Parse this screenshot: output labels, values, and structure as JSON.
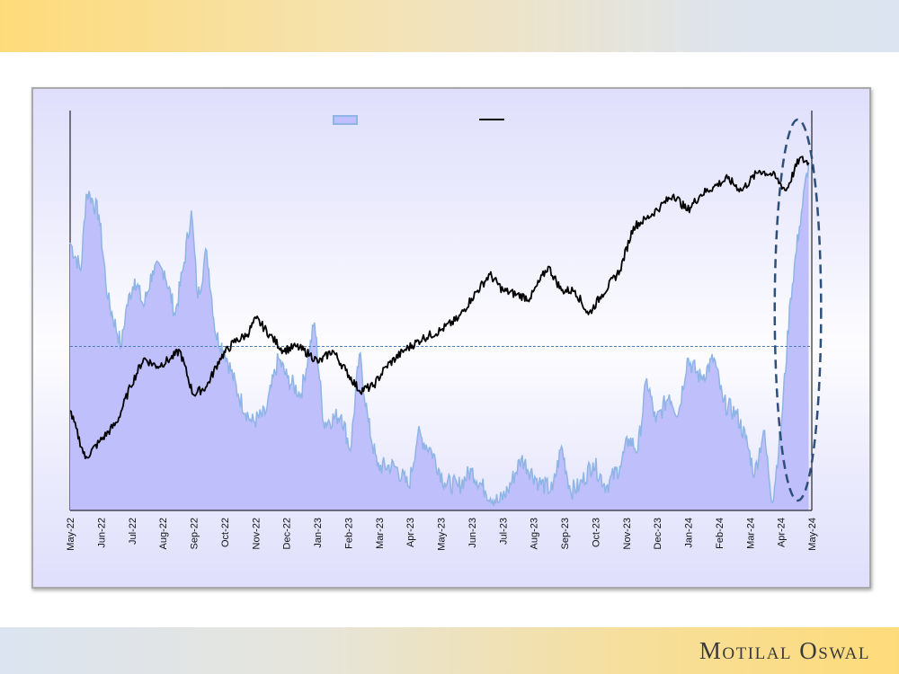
{
  "logo": "Motilal Oswal",
  "chart_data": {
    "type": "area+line",
    "title": "",
    "xlabel": "",
    "ylabel": "",
    "x_tick_labels": [
      "May-22",
      "Jun-22",
      "Jul-22",
      "Aug-22",
      "Sep-22",
      "Oct-22",
      "Nov-22",
      "Dec-22",
      "Jan-23",
      "Feb-23",
      "Mar-23",
      "Apr-23",
      "May-23",
      "Jun-23",
      "Jul-23",
      "Aug-23",
      "Sep-23",
      "Oct-23",
      "Nov-23",
      "Dec-23",
      "Jan-24",
      "Feb-24",
      "Mar-24",
      "Apr-24",
      "May-24"
    ],
    "x_unit": "months since May-22",
    "ylim": [
      0,
      100
    ],
    "y_scale_note": "relative (no y-axis labels shown)",
    "legend": {
      "placement": "top-center",
      "entries": [
        "",
        ""
      ]
    },
    "reference_line": {
      "value": 41,
      "style": "dashed",
      "color": "#4a7fc0"
    },
    "highlight": {
      "shape": "dashed-ellipse",
      "x_range": [
        22.8,
        24.3
      ],
      "color": "#2e4f7a"
    },
    "series": [
      {
        "name": "",
        "kind": "area",
        "fill": "#bfbffb",
        "stroke": "#8fb4e6",
        "points": [
          [
            0,
            67
          ],
          [
            0.35,
            60
          ],
          [
            0.52,
            79
          ],
          [
            0.64,
            79
          ],
          [
            0.93,
            74
          ],
          [
            1.22,
            53
          ],
          [
            1.66,
            41
          ],
          [
            1.8,
            50
          ],
          [
            2.09,
            58
          ],
          [
            2.38,
            51
          ],
          [
            2.67,
            60
          ],
          [
            3.05,
            60
          ],
          [
            3.4,
            49
          ],
          [
            3.69,
            62
          ],
          [
            3.92,
            75
          ],
          [
            4.13,
            53
          ],
          [
            4.42,
            65
          ],
          [
            4.71,
            44
          ],
          [
            5,
            40
          ],
          [
            5.44,
            29
          ],
          [
            5.87,
            22
          ],
          [
            6.31,
            24
          ],
          [
            6.74,
            38
          ],
          [
            7.03,
            33
          ],
          [
            7.47,
            29
          ],
          [
            7.91,
            47
          ],
          [
            8.2,
            22
          ],
          [
            8.78,
            24
          ],
          [
            9.07,
            15
          ],
          [
            9.36,
            39
          ],
          [
            9.65,
            22
          ],
          [
            9.94,
            11
          ],
          [
            10.52,
            11
          ],
          [
            10.96,
            6
          ],
          [
            11.25,
            19
          ],
          [
            11.69,
            15
          ],
          [
            12.12,
            7
          ],
          [
            12.56,
            6
          ],
          [
            12.99,
            10
          ],
          [
            13.43,
            5
          ],
          [
            13.87,
            2
          ],
          [
            14.16,
            5
          ],
          [
            14.6,
            13
          ],
          [
            15.17,
            7
          ],
          [
            15.61,
            5
          ],
          [
            15.9,
            16
          ],
          [
            16.19,
            5
          ],
          [
            16.48,
            6
          ],
          [
            16.92,
            12
          ],
          [
            17.35,
            6
          ],
          [
            17.79,
            11
          ],
          [
            18.08,
            18
          ],
          [
            18.37,
            15
          ],
          [
            18.66,
            33
          ],
          [
            18.95,
            22
          ],
          [
            19.39,
            29
          ],
          [
            19.68,
            24
          ],
          [
            19.97,
            38
          ],
          [
            20.41,
            33
          ],
          [
            20.84,
            38
          ],
          [
            21.13,
            27
          ],
          [
            21.57,
            24
          ],
          [
            21.86,
            18
          ],
          [
            22.15,
            9
          ],
          [
            22.44,
            20
          ],
          [
            22.73,
            2
          ],
          [
            23.02,
            22
          ],
          [
            23.31,
            53
          ],
          [
            23.6,
            71
          ],
          [
            23.9,
            87
          ]
        ]
      },
      {
        "name": "",
        "kind": "line",
        "stroke": "#000000",
        "points": [
          [
            0,
            25
          ],
          [
            0.49,
            13
          ],
          [
            0.93,
            17
          ],
          [
            1.51,
            22
          ],
          [
            1.95,
            31
          ],
          [
            2.38,
            38
          ],
          [
            2.82,
            36
          ],
          [
            3.26,
            38
          ],
          [
            3.55,
            40
          ],
          [
            3.98,
            29
          ],
          [
            4.42,
            31
          ],
          [
            4.85,
            38
          ],
          [
            5.29,
            42
          ],
          [
            5.73,
            44
          ],
          [
            6.02,
            48
          ],
          [
            6.45,
            44
          ],
          [
            6.89,
            40
          ],
          [
            7.33,
            41
          ],
          [
            7.76,
            39
          ],
          [
            8.05,
            37
          ],
          [
            8.49,
            40
          ],
          [
            8.92,
            35
          ],
          [
            9.36,
            30
          ],
          [
            9.8,
            31
          ],
          [
            10.23,
            36
          ],
          [
            10.81,
            40
          ],
          [
            11.4,
            43
          ],
          [
            11.98,
            45
          ],
          [
            12.56,
            48
          ],
          [
            12.99,
            53
          ],
          [
            13.58,
            59
          ],
          [
            14.01,
            55
          ],
          [
            14.45,
            54
          ],
          [
            14.88,
            53
          ],
          [
            15.47,
            61
          ],
          [
            15.9,
            55
          ],
          [
            16.34,
            55
          ],
          [
            16.77,
            49
          ],
          [
            17.21,
            54
          ],
          [
            17.79,
            60
          ],
          [
            18.23,
            71
          ],
          [
            18.66,
            73
          ],
          [
            19.1,
            76
          ],
          [
            19.53,
            79
          ],
          [
            19.97,
            75
          ],
          [
            20.41,
            79
          ],
          [
            20.84,
            81
          ],
          [
            21.28,
            83
          ],
          [
            21.72,
            80
          ],
          [
            22.3,
            85
          ],
          [
            22.73,
            84
          ],
          [
            23.17,
            80
          ],
          [
            23.6,
            88
          ],
          [
            23.9,
            87
          ]
        ]
      }
    ]
  }
}
